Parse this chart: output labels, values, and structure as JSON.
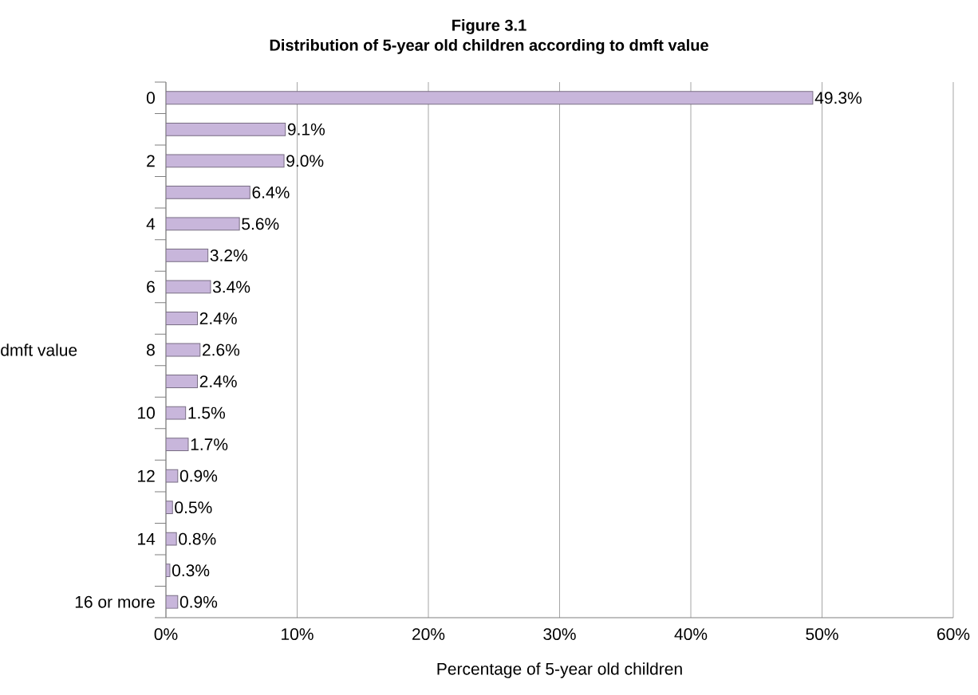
{
  "chart_data": {
    "type": "bar",
    "orientation": "horizontal",
    "title": "Figure 3.1",
    "subtitle": "Distribution of 5-year old children according to dmft value",
    "xlabel": "Percentage of 5-year old children",
    "ylabel": "dmft value",
    "categories": [
      "0",
      null,
      "2",
      null,
      "4",
      null,
      "6",
      null,
      "8",
      null,
      "10",
      null,
      "12",
      null,
      "14",
      null,
      "16 or more"
    ],
    "values": [
      49.3,
      9.1,
      9.0,
      6.4,
      5.6,
      3.2,
      3.4,
      2.4,
      2.6,
      2.4,
      1.5,
      1.7,
      0.9,
      0.5,
      0.8,
      0.3,
      0.9
    ],
    "value_labels": [
      "49.3%",
      "9.1%",
      "9.0%",
      "6.4%",
      "5.6%",
      "3.2%",
      "3.4%",
      "2.4%",
      "2.6%",
      "2.4%",
      "1.5%",
      "1.7%",
      "0.9%",
      "0.5%",
      "0.8%",
      "0.3%",
      "0.9%"
    ],
    "color": "#c8b6db",
    "xlim": [
      0,
      60
    ],
    "xticks": [
      {
        "value": 0,
        "label": "0%"
      },
      {
        "value": 10,
        "label": "10%"
      },
      {
        "value": 20,
        "label": "20%"
      },
      {
        "value": 30,
        "label": "30%"
      },
      {
        "value": 40,
        "label": "40%"
      },
      {
        "value": 50,
        "label": "50%"
      },
      {
        "value": 60,
        "label": "60%"
      }
    ],
    "grid": "x"
  }
}
